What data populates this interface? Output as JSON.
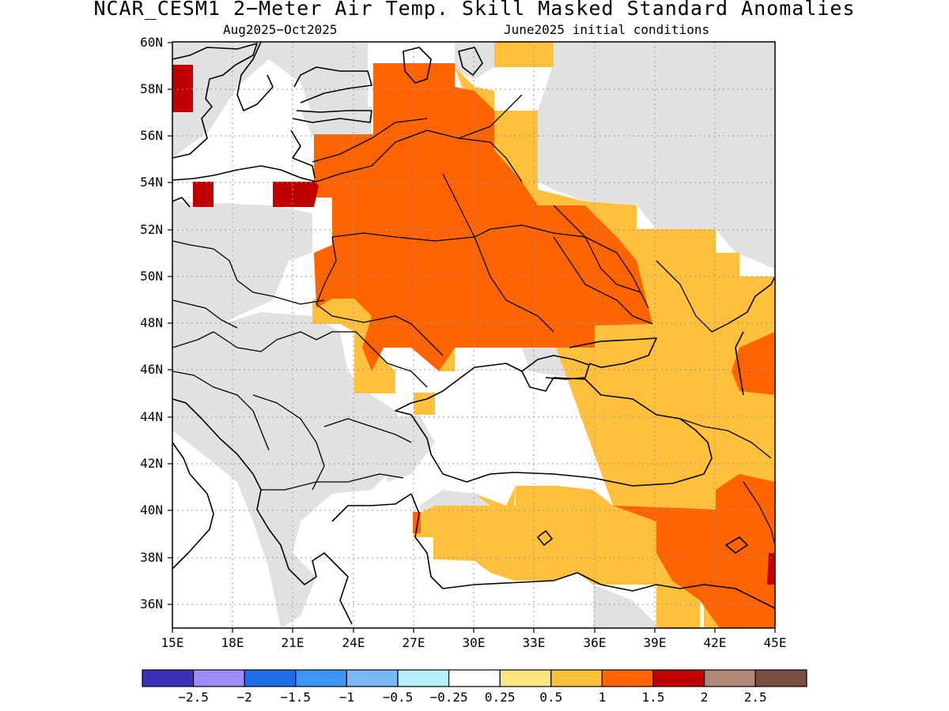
{
  "header": {
    "title": "NCAR_CESM1 2−Meter Air Temp. Skill Masked Standard Anomalies",
    "period": "Aug2025−Oct2025",
    "init": "June2025 initial conditions"
  },
  "map": {
    "lat_labels": [
      "60N",
      "58N",
      "56N",
      "54N",
      "52N",
      "50N",
      "48N",
      "46N",
      "44N",
      "42N",
      "40N",
      "38N",
      "36N"
    ],
    "lon_labels": [
      "15E",
      "18E",
      "21E",
      "24E",
      "27E",
      "30E",
      "33E",
      "36E",
      "39E",
      "42E",
      "45E"
    ],
    "colors": {
      "mask_gray": "#e1e1e1",
      "cat_0_5": "#ffc03c",
      "cat_1": "#ff6400",
      "cat_1_5": "#c00000",
      "cat_0_25": "#ffe680",
      "coast": "#000000"
    }
  },
  "legend": {
    "colors": [
      "#3c2fb8",
      "#a08cf8",
      "#1e6ce6",
      "#3c96f4",
      "#78b9fa",
      "#b4f0fa",
      "#ffffff",
      "#ffe680",
      "#ffc03c",
      "#ff6400",
      "#c00000",
      "#b08878",
      "#7a4e40"
    ],
    "labels": [
      "−2.5",
      "−2",
      "−1.5",
      "−1",
      "−0.5",
      "−0.25",
      "0.25",
      "0.5",
      "1",
      "1.5",
      "2",
      "2.5"
    ]
  }
}
